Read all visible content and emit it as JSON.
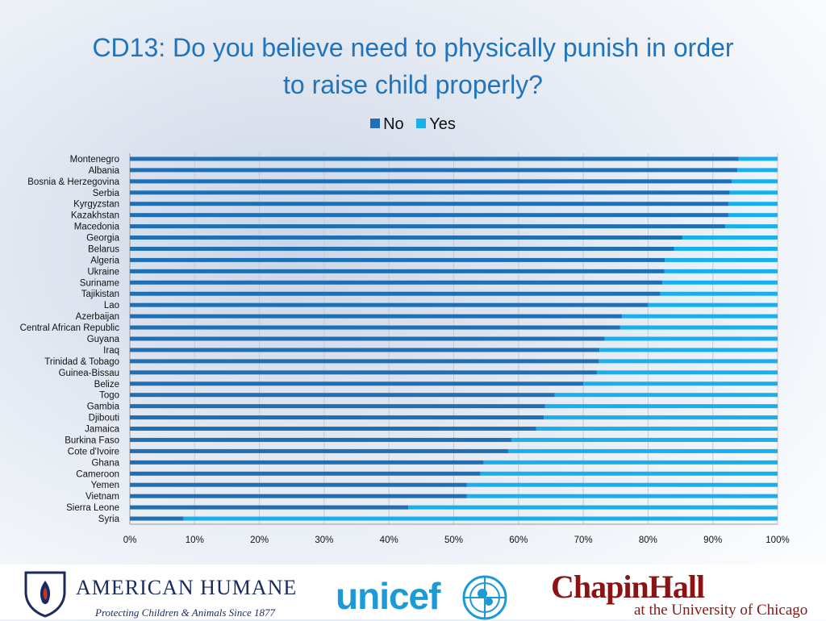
{
  "slide": {
    "title_line1": "CD13: Do you believe need to physically punish in order",
    "title_line2": "to raise child properly?"
  },
  "legend": {
    "no_label": "No",
    "yes_label": "Yes"
  },
  "colors": {
    "no": "#1f6fb5",
    "yes": "#18b0ec",
    "title": "#1f74bd",
    "grid": "#c9c9c9"
  },
  "chart_data": {
    "type": "bar",
    "orientation": "horizontal",
    "stacked": "percent",
    "title": "CD13: Do you believe need to physically punish in order to raise child properly?",
    "categories": [
      "Montenegro",
      "Albania",
      "Bosnia & Herzegovina",
      "Serbia",
      "Kyrgyzstan",
      "Kazakhstan",
      "Macedonia",
      "Georgia",
      "Belarus",
      "Algeria",
      "Ukraine",
      "Suriname",
      "Tajikistan",
      "Lao",
      "Azerbaijan",
      "Central African Republic",
      "Guyana",
      "Iraq",
      "Trinidad & Tobago",
      "Guinea-Bissau",
      "Belize",
      "Togo",
      "Gambia",
      "Djibouti",
      "Jamaica",
      "Burkina Faso",
      "Cote d'Ivoire",
      "Ghana",
      "Cameroon",
      "Yemen",
      "Vietnam",
      "Sierra Leone",
      "Syria"
    ],
    "series": [
      {
        "name": "No",
        "values": [
          94,
          93.8,
          92.9,
          92.6,
          92.4,
          92.4,
          91.9,
          85.3,
          84,
          82.6,
          82.5,
          82.2,
          81.9,
          80,
          76,
          75.7,
          73.3,
          72.5,
          72.4,
          72.1,
          70,
          65.6,
          64.1,
          63.9,
          62.7,
          58.9,
          58.4,
          54.6,
          54.1,
          52,
          52,
          43,
          8.3
        ]
      },
      {
        "name": "Yes",
        "values": [
          6,
          6.2,
          7.1,
          7.4,
          7.6,
          7.6,
          8.1,
          14.7,
          16,
          17.4,
          17.5,
          17.8,
          18.1,
          20,
          24,
          24.3,
          26.7,
          27.5,
          27.6,
          27.9,
          30,
          34.4,
          35.9,
          36.1,
          37.3,
          41.1,
          41.6,
          45.4,
          45.9,
          48,
          48,
          57,
          91.7
        ]
      }
    ],
    "x_ticks": [
      "0%",
      "10%",
      "20%",
      "30%",
      "40%",
      "50%",
      "60%",
      "70%",
      "80%",
      "90%",
      "100%"
    ],
    "xlim": [
      0,
      100
    ],
    "grid": true,
    "legend_position": "top-center"
  },
  "logos": {
    "american_humane_name": "AMERICAN HUMANE",
    "american_humane_tagline": "Protecting Children & Animals Since 1877",
    "unicef_name": "unicef",
    "chapin_name": "ChapinHall",
    "chapin_subtitle": "at the University of Chicago"
  }
}
